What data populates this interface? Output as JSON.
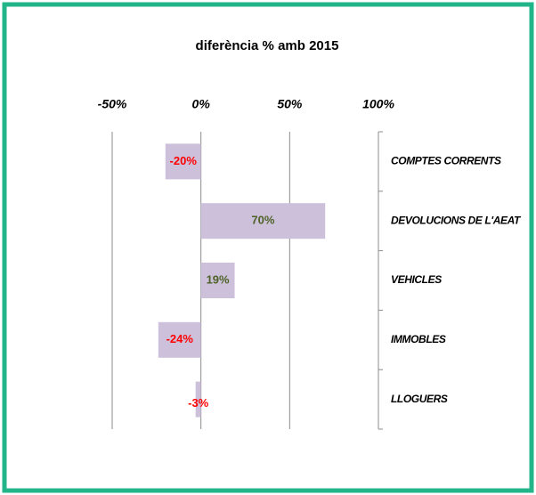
{
  "chart_data": {
    "type": "hbar",
    "title": "diferència % amb 2015",
    "categories": [
      "COMPTES CORRENTS",
      "DEVOLUCIONS DE L'AEAT",
      "VEHICLES",
      "IMMOBLES",
      "LLOGUERS"
    ],
    "values": [
      -20,
      70,
      19,
      -24,
      -3
    ],
    "value_labels": [
      "-20%",
      "70%",
      "19%",
      "-24%",
      "-3%"
    ],
    "color": "#ccc0da",
    "positive_label_color": "#4f6228",
    "negative_label_color": "#ff0000",
    "xlim": [
      -50,
      100
    ],
    "xticks": [
      {
        "value": -50,
        "label": "-50%"
      },
      {
        "value": 0,
        "label": "0%"
      },
      {
        "value": 50,
        "label": "50%"
      },
      {
        "value": 100,
        "label": "100%"
      }
    ],
    "grid": true
  }
}
